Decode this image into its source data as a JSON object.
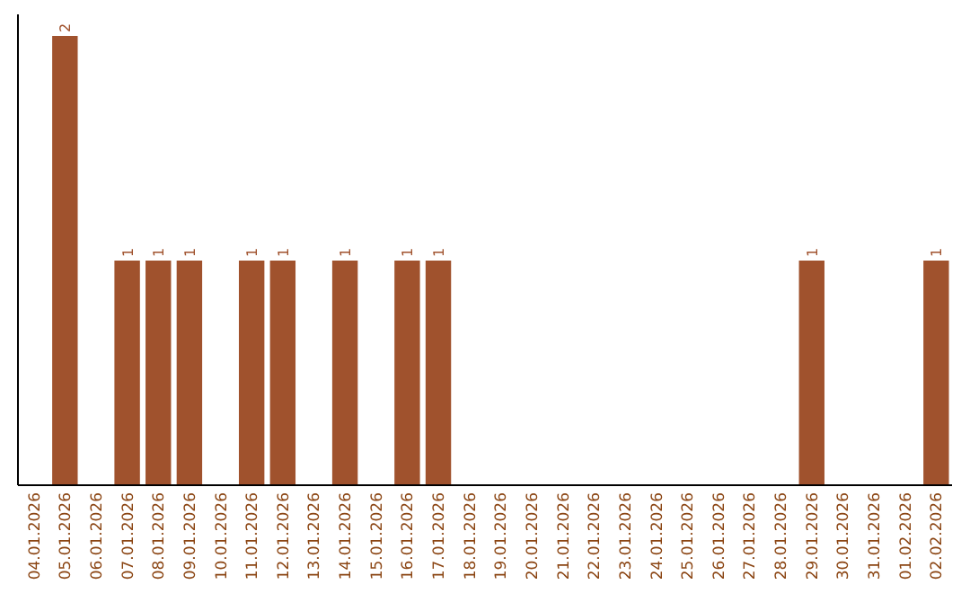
{
  "chart_data": {
    "type": "bar",
    "categories": [
      "04.01.2026",
      "05.01.2026",
      "06.01.2026",
      "07.01.2026",
      "08.01.2026",
      "09.01.2026",
      "10.01.2026",
      "11.01.2026",
      "12.01.2026",
      "13.01.2026",
      "14.01.2026",
      "15.01.2026",
      "16.01.2026",
      "17.01.2026",
      "18.01.2026",
      "19.01.2026",
      "20.01.2026",
      "21.01.2026",
      "22.01.2026",
      "23.01.2026",
      "24.01.2026",
      "25.01.2026",
      "26.01.2026",
      "27.01.2026",
      "28.01.2026",
      "29.01.2026",
      "30.01.2026",
      "31.01.2026",
      "01.02.2026",
      "02.02.2026"
    ],
    "values": [
      0,
      2,
      0,
      1,
      1,
      1,
      0,
      1,
      1,
      0,
      1,
      0,
      1,
      1,
      0,
      0,
      0,
      0,
      0,
      0,
      0,
      0,
      0,
      0,
      0,
      1,
      0,
      0,
      0,
      1
    ],
    "value_labels": [
      null,
      "2",
      null,
      "1",
      "1",
      "1",
      null,
      "1",
      "1",
      null,
      "1",
      null,
      "1",
      "1",
      null,
      null,
      null,
      null,
      null,
      null,
      null,
      null,
      null,
      null,
      null,
      "1",
      null,
      null,
      null,
      "1"
    ],
    "color": "#a0522d",
    "ylim": [
      0,
      2
    ]
  }
}
